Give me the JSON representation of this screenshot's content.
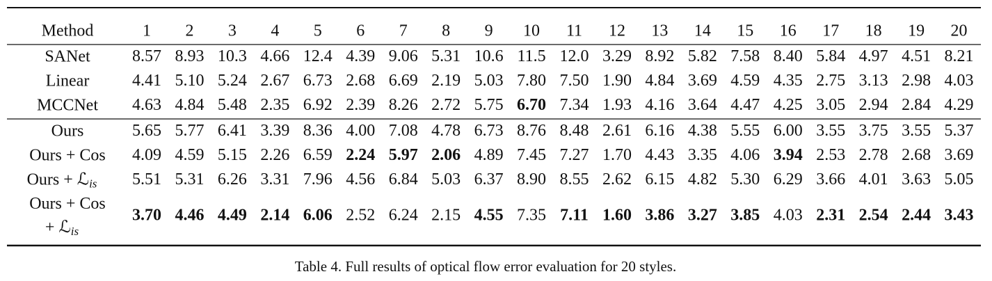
{
  "table": {
    "header": [
      "Method",
      "1",
      "2",
      "3",
      "4",
      "5",
      "6",
      "7",
      "8",
      "9",
      "10",
      "11",
      "12",
      "13",
      "14",
      "15",
      "16",
      "17",
      "18",
      "19",
      "20"
    ],
    "row_groups": [
      [
        {
          "method": [
            "SANet"
          ],
          "values": [
            "8.57",
            "8.93",
            "10.3",
            "4.66",
            "12.4",
            "4.39",
            "9.06",
            "5.31",
            "10.6",
            "11.5",
            "12.0",
            "3.29",
            "8.92",
            "5.82",
            "7.58",
            "8.40",
            "5.84",
            "4.97",
            "4.51",
            "8.21"
          ],
          "bold": [
            false,
            false,
            false,
            false,
            false,
            false,
            false,
            false,
            false,
            false,
            false,
            false,
            false,
            false,
            false,
            false,
            false,
            false,
            false,
            false
          ]
        },
        {
          "method": [
            "Linear"
          ],
          "values": [
            "4.41",
            "5.10",
            "5.24",
            "2.67",
            "6.73",
            "2.68",
            "6.69",
            "2.19",
            "5.03",
            "7.80",
            "7.50",
            "1.90",
            "4.84",
            "3.69",
            "4.59",
            "4.35",
            "2.75",
            "3.13",
            "2.98",
            "4.03"
          ],
          "bold": [
            false,
            false,
            false,
            false,
            false,
            false,
            false,
            false,
            false,
            false,
            false,
            false,
            false,
            false,
            false,
            false,
            false,
            false,
            false,
            false
          ]
        },
        {
          "method": [
            "MCCNet"
          ],
          "values": [
            "4.63",
            "4.84",
            "5.48",
            "2.35",
            "6.92",
            "2.39",
            "8.26",
            "2.72",
            "5.75",
            "6.70",
            "7.34",
            "1.93",
            "4.16",
            "3.64",
            "4.47",
            "4.25",
            "3.05",
            "2.94",
            "2.84",
            "4.29"
          ],
          "bold": [
            false,
            false,
            false,
            false,
            false,
            false,
            false,
            false,
            false,
            true,
            false,
            false,
            false,
            false,
            false,
            false,
            false,
            false,
            false,
            false
          ]
        }
      ],
      [
        {
          "method": [
            "Ours"
          ],
          "values": [
            "5.65",
            "5.77",
            "6.41",
            "3.39",
            "8.36",
            "4.00",
            "7.08",
            "4.78",
            "6.73",
            "8.76",
            "8.48",
            "2.61",
            "6.16",
            "4.38",
            "5.55",
            "6.00",
            "3.55",
            "3.75",
            "3.55",
            "5.37"
          ],
          "bold": [
            false,
            false,
            false,
            false,
            false,
            false,
            false,
            false,
            false,
            false,
            false,
            false,
            false,
            false,
            false,
            false,
            false,
            false,
            false,
            false
          ]
        },
        {
          "method": [
            "Ours + Cos"
          ],
          "values": [
            "4.09",
            "4.59",
            "5.15",
            "2.26",
            "6.59",
            "2.24",
            "5.97",
            "2.06",
            "4.89",
            "7.45",
            "7.27",
            "1.70",
            "4.43",
            "3.35",
            "4.06",
            "3.94",
            "2.53",
            "2.78",
            "2.68",
            "3.69"
          ],
          "bold": [
            false,
            false,
            false,
            false,
            false,
            true,
            true,
            true,
            false,
            false,
            false,
            false,
            false,
            false,
            false,
            true,
            false,
            false,
            false,
            false
          ]
        },
        {
          "method": [
            "Ours + ℒ"
          ],
          "method_sub": "is",
          "values": [
            "5.51",
            "5.31",
            "6.26",
            "3.31",
            "7.96",
            "4.56",
            "6.84",
            "5.03",
            "6.37",
            "8.90",
            "8.55",
            "2.62",
            "6.15",
            "4.82",
            "5.30",
            "6.29",
            "3.66",
            "4.01",
            "3.63",
            "5.05"
          ],
          "bold": [
            false,
            false,
            false,
            false,
            false,
            false,
            false,
            false,
            false,
            false,
            false,
            false,
            false,
            false,
            false,
            false,
            false,
            false,
            false,
            false
          ]
        },
        {
          "method": [
            "Ours + Cos",
            "+ ℒ"
          ],
          "method_sub": "is",
          "values": [
            "3.70",
            "4.46",
            "4.49",
            "2.14",
            "6.06",
            "2.52",
            "6.24",
            "2.15",
            "4.55",
            "7.35",
            "7.11",
            "1.60",
            "3.86",
            "3.27",
            "3.85",
            "4.03",
            "2.31",
            "2.54",
            "2.44",
            "3.43"
          ],
          "bold": [
            true,
            true,
            true,
            true,
            true,
            false,
            false,
            false,
            true,
            false,
            true,
            true,
            true,
            true,
            true,
            false,
            true,
            true,
            true,
            true
          ]
        }
      ]
    ]
  },
  "caption": "Table 4. Full results of optical flow error evaluation for 20 styles."
}
